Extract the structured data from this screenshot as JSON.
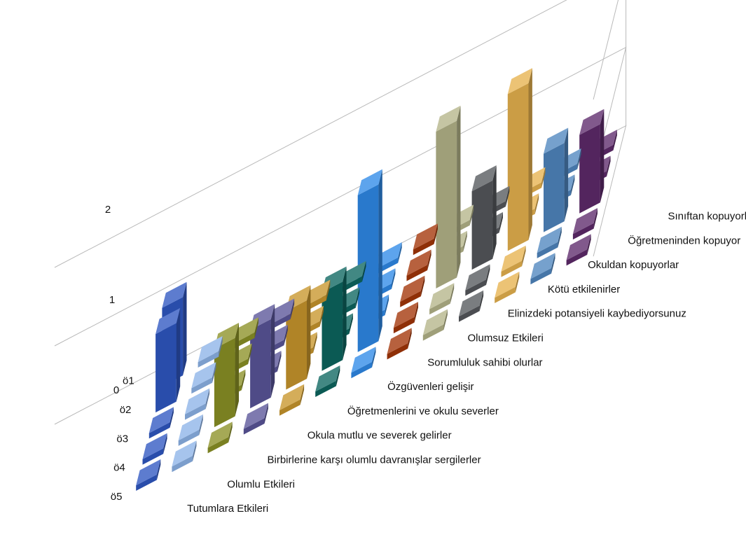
{
  "chart_data": {
    "type": "bar",
    "title": "",
    "rows": [
      "ö1",
      "ö2",
      "ö3",
      "ö4",
      "ö5"
    ],
    "zlim": [
      0,
      2
    ],
    "zticks": [
      "0",
      "1",
      "2"
    ],
    "grid": true,
    "legend": "none",
    "series": [
      {
        "name": "Tutumlara Etkileri",
        "color": "#2f57c2",
        "values": [
          1,
          1,
          0,
          0,
          0
        ]
      },
      {
        "name": "Olumlu Etkileri",
        "color": "#8db3e8",
        "values": [
          0,
          0,
          0,
          0,
          0
        ]
      },
      {
        "name": "Birbirlerine karşı olumlu davranışlar sergilerler",
        "color": "#8b9126",
        "values": [
          0,
          0,
          0,
          1,
          0
        ]
      },
      {
        "name": "Okula mutlu ve severek gelirler",
        "color": "#5a5599",
        "values": [
          0,
          0,
          0,
          1,
          0
        ]
      },
      {
        "name": "Öğretmenlerini ve okulu severler",
        "color": "#c8962c",
        "values": [
          0,
          0,
          0,
          1,
          0
        ]
      },
      {
        "name": "Özgüvenleri gelişir",
        "color": "#0d6660",
        "values": [
          0,
          0,
          0,
          1,
          0
        ]
      },
      {
        "name": "Sorumluluk sahibi olurlar",
        "color": "#2f8ae8",
        "values": [
          0,
          0,
          0,
          2,
          0
        ]
      },
      {
        "name": "Olumsuz Etkileri",
        "color": "#a33508",
        "values": [
          0,
          0,
          0,
          0,
          0
        ]
      },
      {
        "name": "Elinizdeki potansiyeli kaybediyorsunuz",
        "color": "#b5b589",
        "values": [
          0,
          0,
          2,
          0,
          0
        ]
      },
      {
        "name": "Kötü etkilenirler",
        "color": "#55585c",
        "values": [
          0,
          0,
          1,
          0,
          0
        ]
      },
      {
        "name": "Okuldan kopuyorlar",
        "color": "#e7b24e",
        "values": [
          0,
          0,
          2,
          0,
          0
        ]
      },
      {
        "name": "Öğretmeninden kopuyor",
        "color": "#4f86bf",
        "values": [
          0,
          0,
          1,
          0,
          0
        ]
      },
      {
        "name": "Sınıftan kopuyorlar",
        "color": "#5e2a6b",
        "values": [
          0,
          0,
          1,
          0,
          0
        ]
      }
    ]
  }
}
